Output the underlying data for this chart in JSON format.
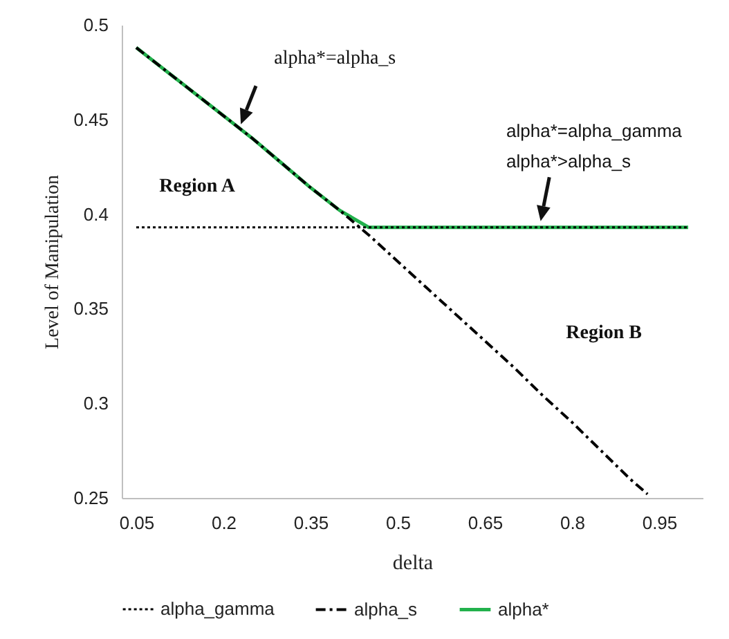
{
  "chart_data": {
    "type": "line",
    "xlabel": "delta",
    "ylabel": "Level of Manipulation",
    "xlim": [
      0.025,
      1.025
    ],
    "xticks": [
      0.05,
      0.2,
      0.35,
      0.5,
      0.65,
      0.8,
      0.95
    ],
    "ylim": [
      0.25,
      0.5
    ],
    "yticks": [
      0.25,
      0.3,
      0.35,
      0.4,
      0.45,
      0.5
    ],
    "grid": false,
    "legend": "bottom",
    "marker": "none",
    "series": [
      {
        "name": "alpha_gamma",
        "color": "#000000",
        "line_style": "dotted",
        "x": [
          0.05,
          1.0
        ],
        "values": [
          0.393,
          0.393
        ]
      },
      {
        "name": "alpha_s",
        "color": "#000000",
        "line_style": "dashed",
        "x": [
          0.05,
          0.1,
          0.15,
          0.2,
          0.25,
          0.3,
          0.35,
          0.4,
          0.45,
          0.5,
          0.55,
          0.6,
          0.65,
          0.7,
          0.75,
          0.8,
          0.85,
          0.9,
          0.93
        ],
        "values": [
          0.488,
          0.476,
          0.464,
          0.452,
          0.44,
          0.427,
          0.414,
          0.402,
          0.389,
          0.375,
          0.361,
          0.347,
          0.333,
          0.319,
          0.304,
          0.29,
          0.275,
          0.26,
          0.252
        ]
      },
      {
        "name": "alpha*",
        "color": "#22b14c",
        "line_style": "solid",
        "x": [
          0.05,
          0.1,
          0.15,
          0.2,
          0.25,
          0.3,
          0.35,
          0.4,
          0.45,
          0.5,
          0.6,
          0.7,
          0.8,
          0.9,
          1.0
        ],
        "values": [
          0.488,
          0.476,
          0.464,
          0.452,
          0.44,
          0.427,
          0.414,
          0.402,
          0.393,
          0.393,
          0.393,
          0.393,
          0.393,
          0.393,
          0.393
        ]
      }
    ],
    "annotations": [
      "alpha*=alpha_s",
      "alpha*=alpha_gamma\nalpha*>alpha_s",
      "Region A",
      "Region B"
    ]
  }
}
